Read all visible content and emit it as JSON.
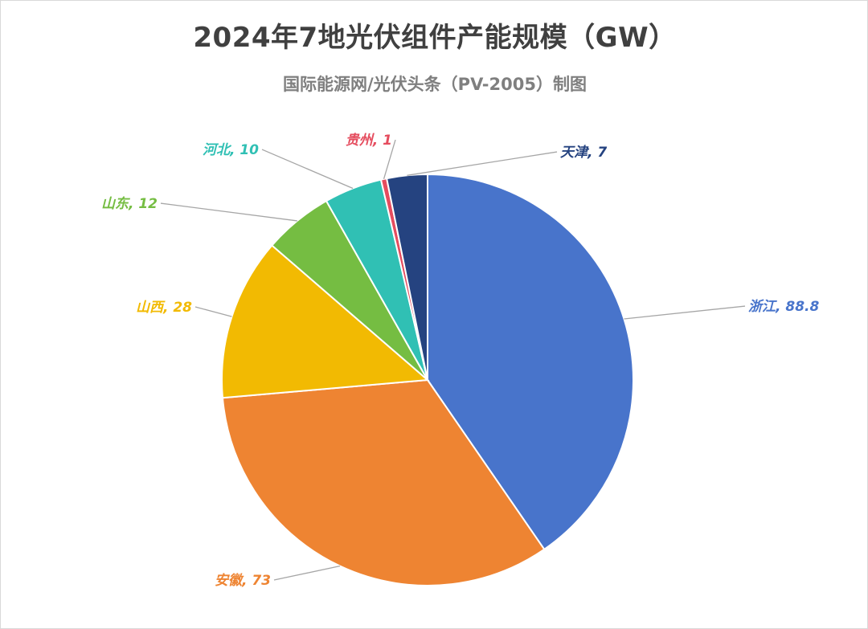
{
  "chart_data": {
    "type": "pie",
    "title": "2024年7地光伏组件产能规模（GW）",
    "subtitle": "国际能源网/光伏头条（PV-2005）制图",
    "slices": [
      {
        "label": "浙江",
        "value": 88.8,
        "color": "#4874CB",
        "label_text": "浙江, 88.8"
      },
      {
        "label": "安徽",
        "value": 73,
        "color": "#EE8432",
        "label_text": "安徽, 73"
      },
      {
        "label": "山西",
        "value": 28,
        "color": "#F2BA02",
        "label_text": "山西, 28"
      },
      {
        "label": "山东",
        "value": 12,
        "color": "#75BD42",
        "label_text": "山东, 12"
      },
      {
        "label": "河北",
        "value": 10,
        "color": "#30C0B4",
        "label_text": "河北, 10"
      },
      {
        "label": "贵州",
        "value": 1,
        "color": "#E54C5E",
        "label_text": "贵州, 1"
      },
      {
        "label": "天津",
        "value": 7,
        "color": "#254380",
        "label_text": "天津, 7"
      }
    ],
    "start_angle_deg": 0,
    "direction": "clockwise",
    "legend": "none",
    "data_labels": "outside-with-leader-lines"
  }
}
